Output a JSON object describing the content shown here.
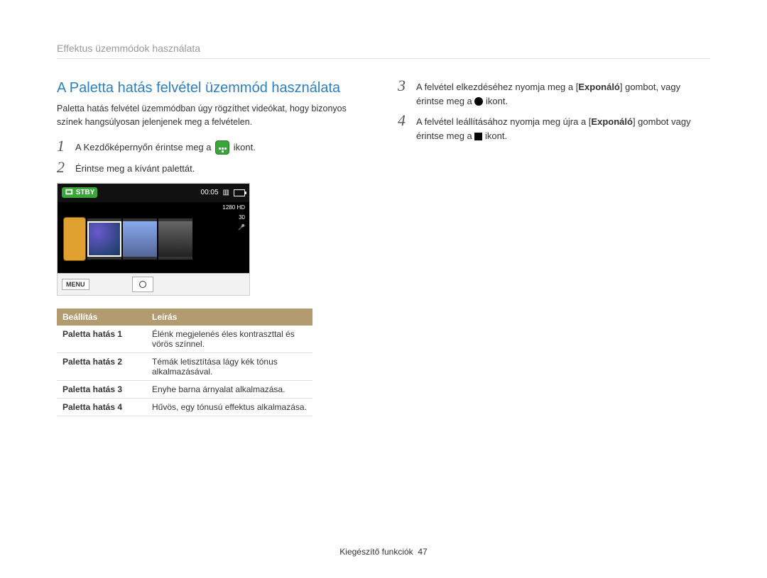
{
  "header": {
    "breadcrumb": "Effektus üzemmódok használata"
  },
  "section": {
    "title": "A Paletta hatás felvétel üzemmód használata",
    "desc": "Paletta hatás felvétel üzemmódban úgy rögzíthet videókat, hogy bizonyos színek hangsúlyosan jelenjenek meg a felvételen."
  },
  "steps": {
    "s1_pre": "A Kezdőképernyőn érintse meg a ",
    "s1_post": " ikont.",
    "s2": "Érintse meg a kívánt palettát.",
    "s3_pre": "A felvétel elkezdéséhez nyomja meg a [",
    "s3_bold": "Exponáló",
    "s3_mid": "] gombot, vagy érintse meg a ",
    "s3_post": " ikont.",
    "s4_pre": "A felvétel leállításához nyomja meg újra a [",
    "s4_bold": "Exponáló",
    "s4_mid": "] gombot vagy érintse meg a ",
    "s4_post": " ikont."
  },
  "numbers": {
    "n1": "1",
    "n2": "2",
    "n3": "3",
    "n4": "4"
  },
  "camera": {
    "stby": "STBY",
    "time": "00:05",
    "res": "1280 HD",
    "fps": "30",
    "menu": "MENU"
  },
  "table": {
    "h1": "Beállítás",
    "h2": "Leírás",
    "rows": [
      {
        "name": "Paletta hatás 1",
        "desc": "Élénk megjelenés éles kontraszttal és vörös színnel."
      },
      {
        "name": "Paletta hatás 2",
        "desc": "Témák letisztítása lágy kék tónus alkalmazásával."
      },
      {
        "name": "Paletta hatás 3",
        "desc": "Enyhe barna árnyalat alkalmazása."
      },
      {
        "name": "Paletta hatás 4",
        "desc": "Hűvös, egy tónusú effektus alkalmazása."
      }
    ]
  },
  "footer": {
    "text": "Kiegészítő funkciók",
    "page": "47"
  },
  "colors": {
    "title": "#2a7fbf",
    "table_header_bg": "#b29b6e",
    "green": "#3aa63a"
  }
}
